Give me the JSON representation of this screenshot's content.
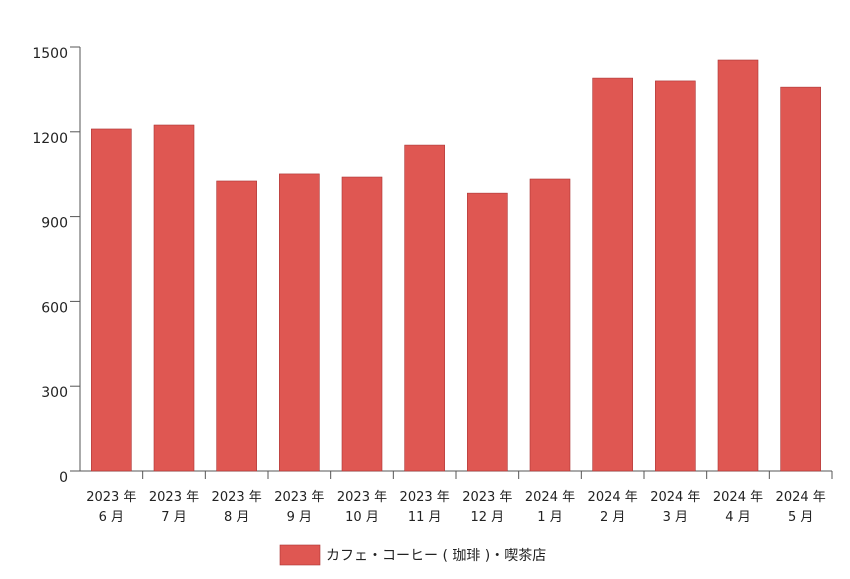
{
  "chart_data": {
    "type": "bar",
    "categories": [
      "2023 年\n6 月",
      "2023 年\n7 月",
      "2023 年\n8 月",
      "2023 年\n9 月",
      "2023 年\n10 月",
      "2023 年\n11 月",
      "2023 年\n12 月",
      "2024 年\n1 月",
      "2024 年\n2 月",
      "2024 年\n3 月",
      "2024 年\n4 月",
      "2024 年\n5 月"
    ],
    "series": [
      {
        "name": "カフェ・コーヒー ( 珈琲 )・喫茶店",
        "color": "#df5752",
        "values": [
          1210,
          1224,
          1026,
          1051,
          1040,
          1153,
          983,
          1033,
          1390,
          1380,
          1454,
          1358
        ]
      }
    ],
    "ylim": [
      0,
      1500
    ],
    "yticks": [
      0,
      300,
      600,
      900,
      1200,
      1500
    ],
    "grid": false,
    "legend": "bottom"
  }
}
